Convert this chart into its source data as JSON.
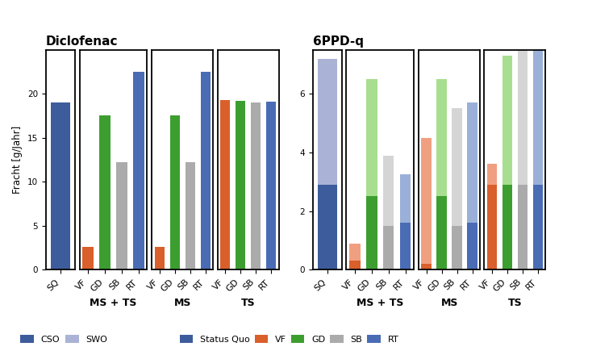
{
  "diclofenac": {
    "sq": {
      "CSO": 19.0
    },
    "ms_ts": {
      "VF": 2.6,
      "GD": 17.5,
      "SB": 12.2,
      "RT": 22.5
    },
    "ms": {
      "VF": 2.6,
      "GD": 17.5,
      "SB": 12.2,
      "RT": 22.5
    },
    "ts": {
      "VF": 19.3,
      "GD": 19.2,
      "SB": 19.0,
      "RT": 19.1
    }
  },
  "sixppd": {
    "sq": {
      "CSO": 2.9,
      "SWO": 4.3
    },
    "ms_ts": {
      "VF": {
        "CSO": 0.3,
        "SWO": 0.6
      },
      "GD": {
        "CSO": 2.5,
        "SWO": 4.0
      },
      "SB": {
        "CSO": 1.5,
        "SWO": 2.4
      },
      "RT": {
        "CSO": 1.6,
        "SWO": 1.65
      }
    },
    "ms": {
      "VF": {
        "CSO": 0.2,
        "SWO": 4.3
      },
      "GD": {
        "CSO": 2.5,
        "SWO": 4.0
      },
      "SB": {
        "CSO": 1.5,
        "SWO": 4.0
      },
      "RT": {
        "CSO": 1.6,
        "SWO": 4.1
      }
    },
    "ts": {
      "VF": {
        "CSO": 2.9,
        "SWO": 0.7
      },
      "GD": {
        "CSO": 2.9,
        "SWO": 4.4
      },
      "SB": {
        "CSO": 2.9,
        "SWO": 4.8
      },
      "RT": {
        "CSO": 2.9,
        "SWO": 6.5
      }
    }
  },
  "colors": {
    "CSO_dark": "#3d5c9c",
    "SWO_light": "#aab3d5",
    "VF_dark": "#d95f2b",
    "VF_light": "#f0a080",
    "GD_dark": "#3d9e30",
    "GD_light": "#a8de90",
    "SB_dark": "#ababab",
    "SB_light": "#d5d5d5",
    "RT_dark": "#4a6cb5",
    "RT_light": "#9ab0d8"
  },
  "ylabel": "Fracht [g/Jahr]",
  "title_dic": "Diclofenac",
  "title_6ppd": "6PPD-q",
  "dic_ylim": 25,
  "ppd_ylim": 7.5,
  "dic_yticks": [
    0,
    5,
    10,
    15,
    20
  ],
  "ppd_yticks": [
    0,
    2,
    4,
    6
  ],
  "bgi_labels": [
    "VF",
    "GD",
    "SB",
    "RT"
  ]
}
